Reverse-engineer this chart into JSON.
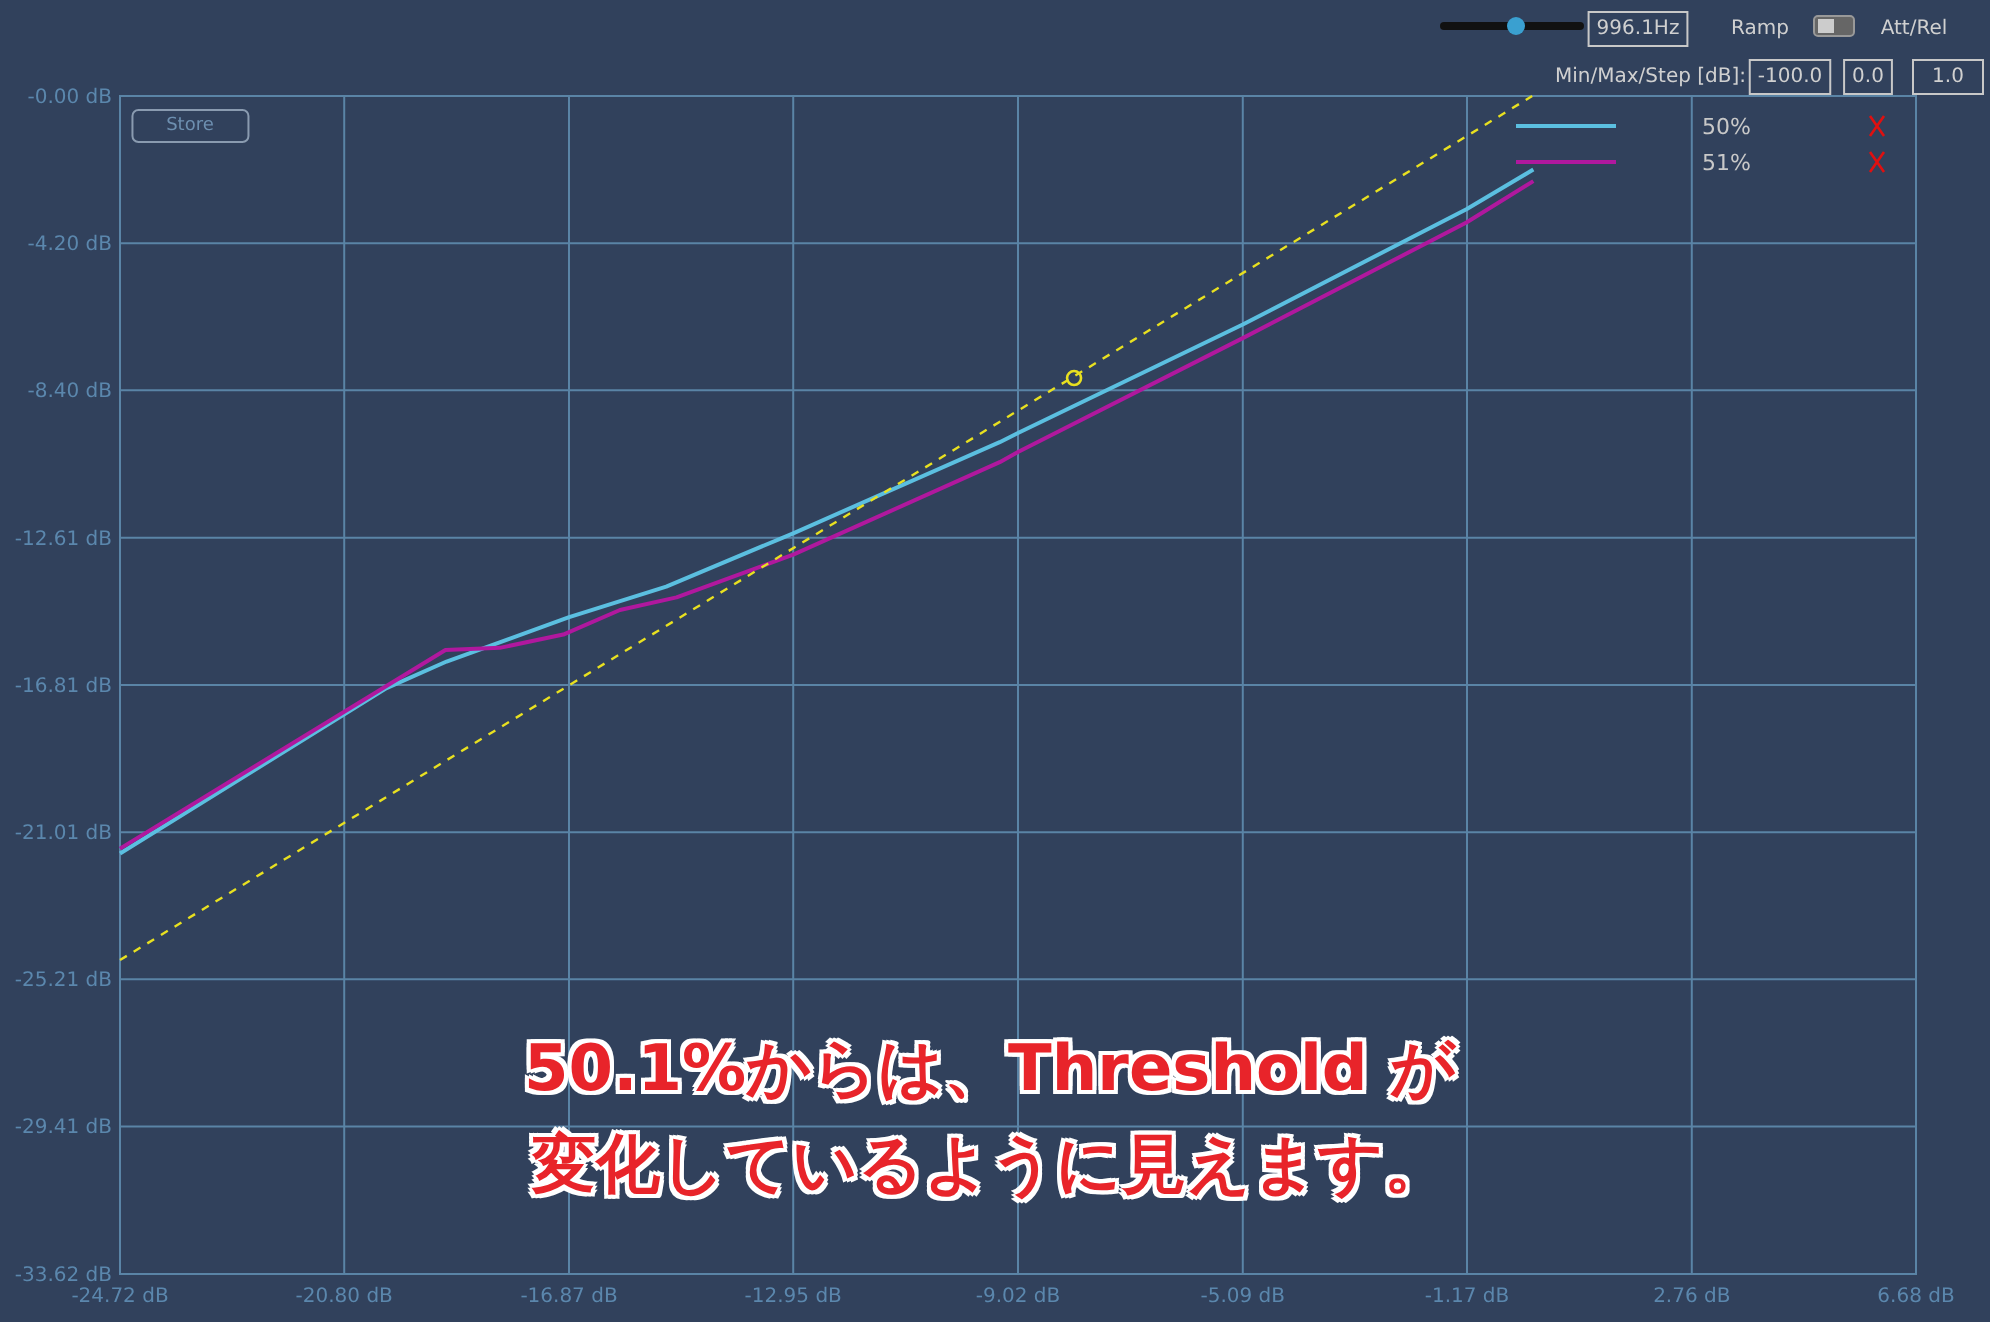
{
  "chart_data": {
    "type": "line",
    "xlim": [
      -24.72,
      6.68
    ],
    "xticks": [
      {
        "value": -24.72,
        "label": "-24.72 dB"
      },
      {
        "value": -20.8,
        "label": "-20.80 dB"
      },
      {
        "value": -16.87,
        "label": "-16.87 dB"
      },
      {
        "value": -12.95,
        "label": "-12.95 dB"
      },
      {
        "value": -9.02,
        "label": "-9.02 dB"
      },
      {
        "value": -5.09,
        "label": "-5.09 dB"
      },
      {
        "value": -1.17,
        "label": "-1.17 dB"
      },
      {
        "value": 2.76,
        "label": "2.76 dB"
      },
      {
        "value": 6.68,
        "label": "6.68 dB"
      }
    ],
    "ylim": [
      -33.62,
      0
    ],
    "yticks": [
      {
        "value": 0,
        "label": "-0.00 dB"
      },
      {
        "value": -4.2,
        "label": "-4.20 dB"
      },
      {
        "value": -8.4,
        "label": "-8.40 dB"
      },
      {
        "value": -12.61,
        "label": "-12.61 dB"
      },
      {
        "value": -16.81,
        "label": "-16.81 dB"
      },
      {
        "value": -21.01,
        "label": "-21.01 dB"
      },
      {
        "value": -25.21,
        "label": "-25.21 dB"
      },
      {
        "value": -29.41,
        "label": "-29.41 dB"
      },
      {
        "value": -33.62,
        "label": "-33.62 dB"
      }
    ],
    "grid": true,
    "legend": "top right",
    "series": [
      {
        "name": "50%",
        "color": "#5bbfe0",
        "x": [
          -24.72,
          -20.06,
          -19.01,
          -16.88,
          -15.17,
          -12.95,
          -9.34,
          -9.02,
          -5.09,
          -1.18,
          -0.01
        ],
        "values": [
          -21.62,
          -16.9,
          -16.14,
          -14.88,
          -14.0,
          -12.48,
          -9.88,
          -9.62,
          -6.52,
          -3.23,
          -2.1
        ]
      },
      {
        "name": "51%",
        "color": "#b0189e",
        "x": [
          -24.72,
          -19.03,
          -18.08,
          -16.97,
          -15.98,
          -14.99,
          -12.95,
          -9.34,
          -9.02,
          -5.09,
          -1.18,
          -0.01
        ],
        "values": [
          -21.48,
          -15.81,
          -15.75,
          -15.37,
          -14.67,
          -14.31,
          -13.09,
          -10.45,
          -10.16,
          -6.91,
          -3.61,
          -2.43
        ]
      },
      {
        "type": "line",
        "line_style": "dashed",
        "color": "#e8e020",
        "x": [
          -24.72,
          -0.03
        ],
        "values": [
          -24.66,
          0
        ]
      },
      {
        "type": "scatter",
        "marker": "circle",
        "color": "#e8e020",
        "x": [
          -8.04
        ],
        "values": [
          -8.05
        ]
      }
    ],
    "annotations": [
      "996.1Hz",
      "Ramp",
      "Att/Rel",
      "Min/Max/Step [dB]:",
      "-100.0",
      "0.0",
      "1.0",
      "Store",
      "50.1%からは、Threshold が変化しているように見えます。"
    ]
  }
}
